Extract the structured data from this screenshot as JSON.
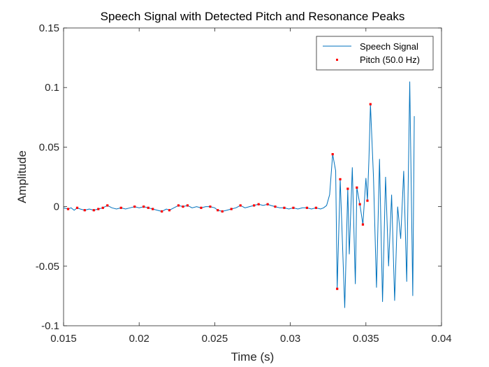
{
  "colors": {
    "signal": "#0072bd",
    "pitch": "#ff0000",
    "axis": "#262626",
    "background": "#ffffff"
  },
  "chart_data": {
    "type": "line",
    "title": "Speech Signal with Detected Pitch and Resonance Peaks",
    "xlabel": "Time (s)",
    "ylabel": "Amplitude",
    "xlim": [
      0.015,
      0.04
    ],
    "ylim": [
      -0.1,
      0.15
    ],
    "xticks": [
      0.015,
      0.02,
      0.025,
      0.03,
      0.035,
      0.04
    ],
    "xtick_labels": [
      "0.015",
      "0.02",
      "0.025",
      "0.03",
      "0.035",
      "0.04"
    ],
    "yticks": [
      -0.1,
      -0.05,
      0,
      0.05,
      0.1,
      0.15
    ],
    "ytick_labels": [
      "-0.1",
      "-0.05",
      "0",
      "0.05",
      "0.1",
      "0.15"
    ],
    "grid": false,
    "legend_position": "top-right",
    "series": [
      {
        "name": "Speech Signal",
        "style": "line",
        "points": [
          [
            0.015,
            -0.001
          ],
          [
            0.0153,
            -0.002
          ],
          [
            0.0155,
            -0.001
          ],
          [
            0.0157,
            -0.003
          ],
          [
            0.0159,
            -0.001
          ],
          [
            0.0161,
            -0.002
          ],
          [
            0.0164,
            -0.003
          ],
          [
            0.0167,
            -0.002
          ],
          [
            0.017,
            -0.003
          ],
          [
            0.0173,
            -0.002
          ],
          [
            0.0176,
            -0.001
          ],
          [
            0.0179,
            0.001
          ],
          [
            0.0182,
            -0.001
          ],
          [
            0.0185,
            -0.002
          ],
          [
            0.0188,
            -0.001
          ],
          [
            0.0191,
            -0.002
          ],
          [
            0.0194,
            -0.001
          ],
          [
            0.0197,
            0.0
          ],
          [
            0.02,
            -0.001
          ],
          [
            0.0203,
            0.0
          ],
          [
            0.0206,
            -0.001
          ],
          [
            0.0209,
            -0.002
          ],
          [
            0.0212,
            -0.003
          ],
          [
            0.0215,
            -0.004
          ],
          [
            0.0218,
            -0.002
          ],
          [
            0.022,
            -0.003
          ],
          [
            0.0223,
            -0.001
          ],
          [
            0.0226,
            0.001
          ],
          [
            0.0229,
            0.0
          ],
          [
            0.0232,
            0.001
          ],
          [
            0.0235,
            -0.001
          ],
          [
            0.0238,
            0.0
          ],
          [
            0.0241,
            -0.001
          ],
          [
            0.0244,
            0.0
          ],
          [
            0.0247,
            0.0
          ],
          [
            0.025,
            -0.001
          ],
          [
            0.0252,
            -0.003
          ],
          [
            0.0255,
            -0.004
          ],
          [
            0.0258,
            -0.003
          ],
          [
            0.0261,
            -0.002
          ],
          [
            0.0264,
            -0.001
          ],
          [
            0.0267,
            0.001
          ],
          [
            0.027,
            -0.001
          ],
          [
            0.0273,
            0.0
          ],
          [
            0.0276,
            0.001
          ],
          [
            0.0279,
            0.002
          ],
          [
            0.0282,
            0.001
          ],
          [
            0.0285,
            0.002
          ],
          [
            0.0287,
            0.001
          ],
          [
            0.029,
            0.0
          ],
          [
            0.0293,
            -0.001
          ],
          [
            0.0296,
            -0.001
          ],
          [
            0.0299,
            -0.002
          ],
          [
            0.0302,
            -0.001
          ],
          [
            0.0305,
            -0.002
          ],
          [
            0.0308,
            -0.001
          ],
          [
            0.0311,
            -0.001
          ],
          [
            0.0314,
            -0.002
          ],
          [
            0.0317,
            -0.001
          ],
          [
            0.032,
            -0.002
          ],
          [
            0.0322,
            -0.001
          ],
          [
            0.0324,
            0.001
          ],
          [
            0.0326,
            0.01
          ],
          [
            0.0328,
            0.044
          ],
          [
            0.033,
            0.03
          ],
          [
            0.0331,
            -0.069
          ],
          [
            0.0333,
            0.023
          ],
          [
            0.0336,
            -0.085
          ],
          [
            0.0338,
            0.015
          ],
          [
            0.0339,
            -0.04
          ],
          [
            0.0341,
            0.033
          ],
          [
            0.0343,
            -0.065
          ],
          [
            0.0344,
            0.016
          ],
          [
            0.0346,
            0.002
          ],
          [
            0.0348,
            -0.015
          ],
          [
            0.035,
            0.024
          ],
          [
            0.0351,
            0.005
          ],
          [
            0.0352,
            0.04
          ],
          [
            0.0353,
            0.086
          ],
          [
            0.0355,
            0.025
          ],
          [
            0.0357,
            -0.068
          ],
          [
            0.0359,
            0.04
          ],
          [
            0.0361,
            -0.08
          ],
          [
            0.0363,
            0.025
          ],
          [
            0.0365,
            -0.05
          ],
          [
            0.0367,
            0.01
          ],
          [
            0.0369,
            -0.079
          ],
          [
            0.0371,
            0.0
          ],
          [
            0.0373,
            -0.027
          ],
          [
            0.0375,
            0.03
          ],
          [
            0.0377,
            -0.063
          ],
          [
            0.0379,
            0.105
          ],
          [
            0.0381,
            -0.075
          ],
          [
            0.0382,
            0.076
          ]
        ]
      },
      {
        "name": "Pitch (50.0 Hz)",
        "style": "marker",
        "points": [
          [
            0.0153,
            -0.002
          ],
          [
            0.0159,
            -0.001
          ],
          [
            0.0164,
            -0.003
          ],
          [
            0.017,
            -0.003
          ],
          [
            0.0173,
            -0.002
          ],
          [
            0.0176,
            -0.001
          ],
          [
            0.0179,
            0.001
          ],
          [
            0.0188,
            -0.001
          ],
          [
            0.0197,
            0.0
          ],
          [
            0.0203,
            0.0
          ],
          [
            0.0206,
            -0.001
          ],
          [
            0.0209,
            -0.002
          ],
          [
            0.0215,
            -0.004
          ],
          [
            0.022,
            -0.003
          ],
          [
            0.0226,
            0.001
          ],
          [
            0.0229,
            0.0
          ],
          [
            0.0232,
            0.001
          ],
          [
            0.0241,
            -0.001
          ],
          [
            0.0247,
            0.0
          ],
          [
            0.0252,
            -0.003
          ],
          [
            0.0255,
            -0.004
          ],
          [
            0.0261,
            -0.002
          ],
          [
            0.0267,
            0.001
          ],
          [
            0.0276,
            0.001
          ],
          [
            0.0279,
            0.002
          ],
          [
            0.0285,
            0.002
          ],
          [
            0.029,
            0.0
          ],
          [
            0.0296,
            -0.001
          ],
          [
            0.0302,
            -0.001
          ],
          [
            0.0311,
            -0.001
          ],
          [
            0.0317,
            -0.001
          ],
          [
            0.0328,
            0.044
          ],
          [
            0.0331,
            -0.069
          ],
          [
            0.0333,
            0.023
          ],
          [
            0.0338,
            0.015
          ],
          [
            0.0344,
            0.016
          ],
          [
            0.0346,
            0.002
          ],
          [
            0.0348,
            -0.015
          ],
          [
            0.0351,
            0.005
          ],
          [
            0.0353,
            0.086
          ]
        ]
      }
    ]
  }
}
